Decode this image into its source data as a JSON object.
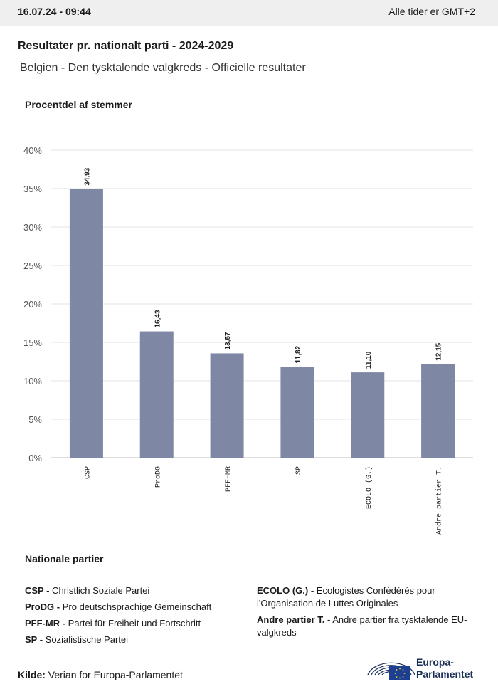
{
  "header": {
    "timestamp": "16.07.24 - 09:44",
    "timezone": "Alle tider er GMT+2"
  },
  "title": "Resultater pr. nationalt parti - 2024-2029",
  "subtitle": "Belgien - Den tysktalende valgkreds - Officielle resultater",
  "chart_data": {
    "type": "bar",
    "title": "",
    "ylabel": "Procentdel af stemmer",
    "xlabel": "",
    "ylim": [
      0,
      40
    ],
    "yticks": [
      "0%",
      "5%",
      "10%",
      "15%",
      "20%",
      "25%",
      "30%",
      "35%",
      "40%"
    ],
    "ytick_values": [
      0,
      5,
      10,
      15,
      20,
      25,
      30,
      35,
      40
    ],
    "categories": [
      "CSP",
      "ProDG",
      "PFF-MR",
      "SP",
      "ECOLO (G.)",
      "Andre partier T."
    ],
    "values": [
      34.93,
      16.43,
      13.57,
      11.82,
      11.1,
      12.15
    ],
    "value_labels": [
      "34,93",
      "16,43",
      "13,57",
      "11,82",
      "11,10",
      "12,15"
    ],
    "bar_color": "#7e88a5",
    "grid": true
  },
  "legend": {
    "title": "Nationale partier",
    "left": [
      {
        "abbr": "CSP -",
        "name": "Christlich Soziale Partei"
      },
      {
        "abbr": "ProDG -",
        "name": "Pro deutschsprachige Gemeinschaft"
      },
      {
        "abbr": "PFF-MR -",
        "name": "Partei für Freiheit und Fortschritt"
      },
      {
        "abbr": "SP -",
        "name": "Sozialistische Partei"
      }
    ],
    "right": [
      {
        "abbr": "ECOLO (G.) -",
        "name": "Ecologistes Confédérés pour l'Organisation de Luttes Originales"
      },
      {
        "abbr": "Andre partier T. -",
        "name": "Andre partier fra tysktalende EU-valgkreds"
      }
    ]
  },
  "source": {
    "label": "Kilde:",
    "text": "Verian for Europa-Parlamentet"
  },
  "logo": {
    "line1": "Europa-",
    "line2": "Parlamentet",
    "icon": "european-parliament-logo-icon"
  }
}
